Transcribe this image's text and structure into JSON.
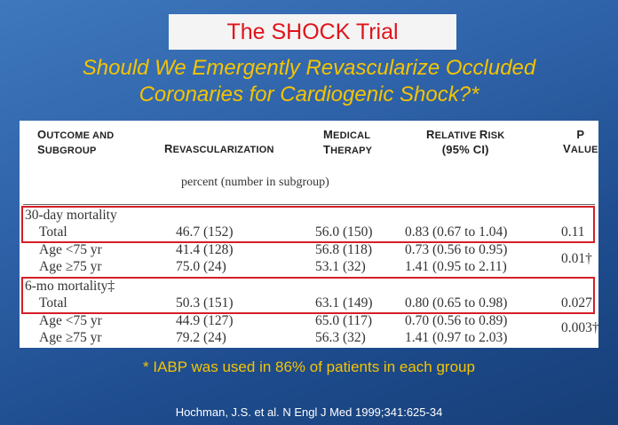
{
  "title": "The SHOCK Trial",
  "subtitle_line1": "Should We Emergently Revascularize Occluded",
  "subtitle_line2": "Coronaries for Cardiogenic Shock?*",
  "table": {
    "headers": {
      "outcome_l1_first": "O",
      "outcome_l1_rest": "UTCOME AND",
      "outcome_l2_first": "S",
      "outcome_l2_rest": "UBGROUP",
      "revasc_first": "R",
      "revasc_rest": "EVASCULARIZATION",
      "medical_l1_first": "M",
      "medical_l1_rest": "EDICAL",
      "medical_l2_first": "T",
      "medical_l2_rest": "HERAPY",
      "rr_l1_first": "R",
      "rr_l1_rest": "ELATIVE ",
      "rr_l1_first2": "R",
      "rr_l1_rest2": "ISK",
      "rr_l2": "(95% CI)",
      "p_l1": "P",
      "p_l2_first": "V",
      "p_l2_rest": "ALUE"
    },
    "units_note": "percent (number in subgroup)",
    "groups": [
      {
        "label": "30-day mortality",
        "rows": [
          {
            "subgroup": "Total",
            "revasc": "46.7 (152)",
            "medical": "56.0 (150)",
            "rr": "0.83 (0.67 to 1.04)",
            "p": "0.11"
          },
          {
            "subgroup": "Age <75 yr",
            "revasc": "41.4 (128)",
            "medical": "56.8 (118)",
            "rr": "0.73 (0.56 to 0.95)"
          },
          {
            "subgroup": "Age ≥75 yr",
            "revasc": "75.0 (24)",
            "medical": "53.1 (32)",
            "rr": "1.41 (0.95 to 2.11)"
          }
        ],
        "age_p": "0.01†"
      },
      {
        "label": "6-mo mortality‡",
        "rows": [
          {
            "subgroup": "Total",
            "revasc": "50.3 (151)",
            "medical": "63.1 (149)",
            "rr": "0.80 (0.65 to 0.98)",
            "p": "0.027"
          },
          {
            "subgroup": "Age <75 yr",
            "revasc": "44.9 (127)",
            "medical": "65.0 (117)",
            "rr": "0.70 (0.56 to 0.89)"
          },
          {
            "subgroup": "Age ≥75 yr",
            "revasc": "79.2 (24)",
            "medical": "56.3 (32)",
            "rr": "1.41 (0.97 to 2.03)"
          }
        ],
        "age_p": "0.003†"
      }
    ]
  },
  "footnote": "*  IABP was used in 86% of patients in each group",
  "citation": "Hochman, J.S. et al. N Engl J Med 1999;341:625-34",
  "colors": {
    "title_red": "#e0141b",
    "subtitle_yellow": "#f5c400",
    "highlight_box": "#d41f26"
  }
}
